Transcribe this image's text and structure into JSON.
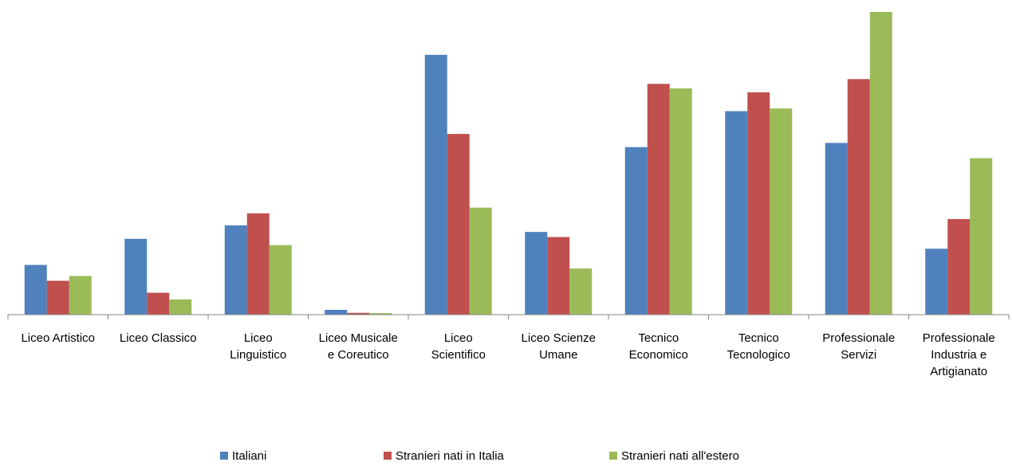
{
  "chart_data": {
    "type": "bar",
    "title": "",
    "xlabel": "",
    "ylabel": "",
    "ylim": [
      0,
      100
    ],
    "grid": false,
    "legend_position": "bottom",
    "categories": [
      "Liceo Artistico",
      "Liceo Classico",
      "Liceo Linguistico",
      "Liceo Musicale e Coreutico",
      "Liceo Scientifico",
      "Liceo Scienze Umane",
      "Tecnico Economico",
      "Tecnico Tecnologico",
      "Professionale Servizi",
      "Professionale Industria e Artigianato"
    ],
    "category_lines": [
      [
        "Liceo Artistico"
      ],
      [
        "Liceo Classico"
      ],
      [
        "Liceo",
        "Linguistico"
      ],
      [
        "Liceo Musicale",
        "e Coreutico"
      ],
      [
        "Liceo",
        "Scientifico"
      ],
      [
        "Liceo Scienze",
        "Umane"
      ],
      [
        "Tecnico",
        "Economico"
      ],
      [
        "Tecnico",
        "Tecnologico"
      ],
      [
        "Professionale",
        "Servizi"
      ],
      [
        "Professionale",
        "Industria e",
        "Artigianato"
      ]
    ],
    "series": [
      {
        "name": "Italiani",
        "color": "#4F81BD",
        "values": [
          16.6,
          25.3,
          29.8,
          1.6,
          86.7,
          27.6,
          55.9,
          67.9,
          57.3,
          22.0
        ]
      },
      {
        "name": "Stranieri nati in Italia",
        "color": "#C0504D",
        "values": [
          11.3,
          7.3,
          33.8,
          0.6,
          60.3,
          25.9,
          77.0,
          74.2,
          78.6,
          31.9
        ]
      },
      {
        "name": "Stranieri nati all'estero",
        "color": "#9BBB59",
        "values": [
          12.9,
          5.1,
          23.2,
          0.5,
          35.7,
          15.4,
          75.5,
          68.8,
          101.0,
          52.2
        ]
      }
    ]
  }
}
